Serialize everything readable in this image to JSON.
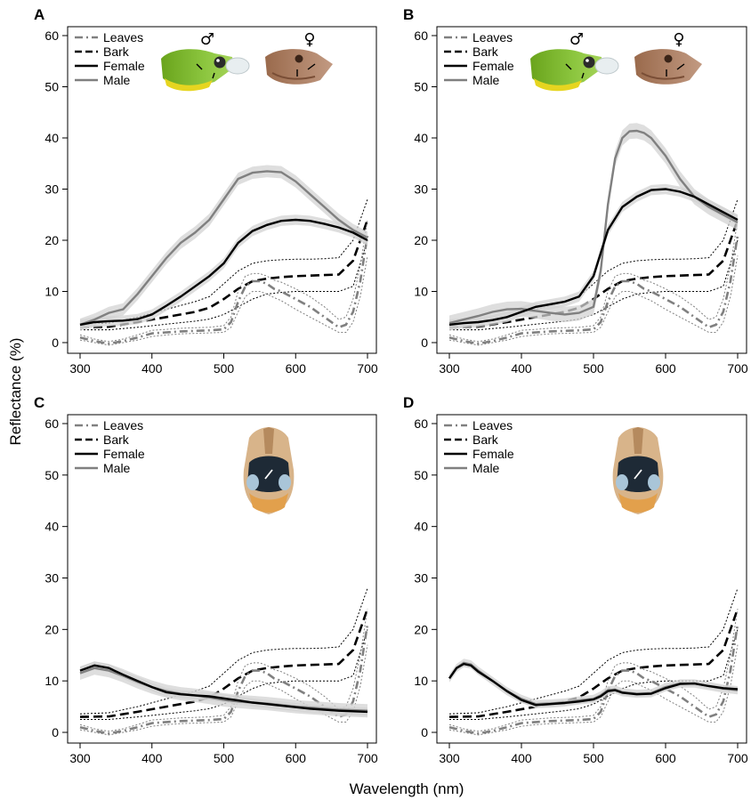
{
  "figure": {
    "ylabel": "Reflectance (%)",
    "xlabel": "Wavelength (nm)"
  },
  "chart_data": [
    {
      "panel": "A",
      "type": "line",
      "xlim": [
        300,
        700
      ],
      "ylim": [
        0,
        60
      ],
      "x_ticks": [
        300,
        400,
        500,
        600,
        700
      ],
      "y_ticks": [
        0,
        10,
        20,
        30,
        40,
        50,
        60
      ],
      "legend_position": "top-left",
      "legend": [
        "Leaves",
        "Bark",
        "Female",
        "Male"
      ],
      "image_annotations": [
        "♂",
        "♀"
      ],
      "series": [
        {
          "name": "Male",
          "style": "solid",
          "color": "#808080",
          "x": [
            300,
            320,
            340,
            360,
            380,
            400,
            420,
            440,
            460,
            480,
            500,
            520,
            540,
            560,
            580,
            600,
            620,
            640,
            660,
            680,
            700
          ],
          "y": [
            3.5,
            4.5,
            5.8,
            6.5,
            9.5,
            13,
            16.5,
            19.5,
            21.5,
            24,
            28,
            32,
            33.2,
            33.5,
            33.3,
            31.5,
            29,
            26.5,
            24,
            22,
            20.5
          ],
          "band": 1.2
        },
        {
          "name": "Female",
          "style": "solid",
          "color": "#000000",
          "x": [
            300,
            320,
            340,
            360,
            380,
            400,
            420,
            440,
            460,
            480,
            500,
            520,
            540,
            560,
            580,
            600,
            620,
            640,
            660,
            680,
            700
          ],
          "y": [
            3.5,
            4,
            4.2,
            4.3,
            4.6,
            5.5,
            7.2,
            9,
            11,
            13,
            15.5,
            19.5,
            21.8,
            23,
            23.8,
            24,
            23.8,
            23.2,
            22.5,
            21.5,
            20
          ],
          "band": 1.0
        }
      ]
    },
    {
      "panel": "B",
      "type": "line",
      "xlim": [
        300,
        700
      ],
      "ylim": [
        0,
        60
      ],
      "x_ticks": [
        300,
        400,
        500,
        600,
        700
      ],
      "y_ticks": [
        0,
        10,
        20,
        30,
        40,
        50,
        60
      ],
      "legend_position": "top-left",
      "legend": [
        "Leaves",
        "Bark",
        "Female",
        "Male"
      ],
      "image_annotations": [
        "♂",
        "♀"
      ],
      "series": [
        {
          "name": "Male",
          "style": "solid",
          "color": "#808080",
          "x": [
            300,
            320,
            340,
            360,
            380,
            400,
            420,
            440,
            460,
            480,
            500,
            510,
            520,
            530,
            540,
            550,
            560,
            570,
            580,
            600,
            620,
            640,
            660,
            680,
            700
          ],
          "y": [
            3.8,
            4.5,
            5.2,
            6,
            6.5,
            6.6,
            6.2,
            5.8,
            5.5,
            5.8,
            7,
            14,
            27,
            36,
            40,
            41.3,
            41.4,
            41,
            40,
            36.5,
            32,
            28.5,
            26.5,
            25,
            23.5
          ],
          "band": 1.5
        },
        {
          "name": "Female",
          "style": "solid",
          "color": "#000000",
          "x": [
            300,
            320,
            340,
            360,
            380,
            400,
            420,
            440,
            460,
            480,
            500,
            520,
            540,
            560,
            580,
            600,
            620,
            640,
            660,
            680,
            700
          ],
          "y": [
            3.5,
            3.8,
            4,
            4.4,
            5,
            6,
            7,
            7.5,
            8,
            9,
            13,
            22,
            26.5,
            28.5,
            29.8,
            30,
            29.5,
            28.5,
            27,
            25.5,
            24
          ],
          "band": 1.0
        }
      ]
    },
    {
      "panel": "C",
      "type": "line",
      "xlim": [
        300,
        700
      ],
      "ylim": [
        0,
        60
      ],
      "x_ticks": [
        300,
        400,
        500,
        600,
        700
      ],
      "y_ticks": [
        0,
        10,
        20,
        30,
        40,
        50,
        60
      ],
      "legend_position": "top-left",
      "legend": [
        "Leaves",
        "Bark",
        "Female",
        "Male"
      ],
      "image_annotations": [],
      "series": [
        {
          "name": "Male",
          "style": "solid",
          "color": "#808080",
          "x": [
            300,
            320,
            340,
            360,
            380,
            400,
            420,
            440,
            460,
            480,
            500,
            520,
            540,
            560,
            580,
            600,
            620,
            640,
            660,
            680,
            700
          ],
          "y": [
            11.5,
            12.5,
            12,
            11,
            9.8,
            8.8,
            8,
            7.5,
            7.2,
            6.8,
            6.3,
            6,
            5.8,
            5.6,
            5.3,
            5,
            4.8,
            4.6,
            4.4,
            4.3,
            4.2
          ],
          "band": 1.3
        },
        {
          "name": "Female",
          "style": "solid",
          "color": "#000000",
          "x": [
            300,
            320,
            340,
            360,
            380,
            400,
            420,
            440,
            460,
            480,
            500,
            520,
            540,
            560,
            580,
            600,
            620,
            640,
            660,
            680,
            700
          ],
          "y": [
            12,
            13,
            12.5,
            11.2,
            10,
            8.8,
            7.8,
            7.4,
            7.2,
            7,
            6.6,
            6.2,
            5.8,
            5.5,
            5.2,
            4.9,
            4.6,
            4.4,
            4.2,
            4.1,
            4
          ],
          "band": 0.8
        }
      ]
    },
    {
      "panel": "D",
      "type": "line",
      "xlim": [
        300,
        700
      ],
      "ylim": [
        0,
        60
      ],
      "x_ticks": [
        300,
        400,
        500,
        600,
        700
      ],
      "y_ticks": [
        0,
        10,
        20,
        30,
        40,
        50,
        60
      ],
      "legend_position": "top-left",
      "legend": [
        "Leaves",
        "Bark",
        "Female",
        "Male"
      ],
      "image_annotations": [],
      "series": [
        {
          "name": "Male",
          "style": "solid",
          "color": "#808080",
          "x": [
            300,
            310,
            320,
            330,
            340,
            360,
            380,
            400,
            420,
            440,
            460,
            480,
            500,
            510,
            520,
            530,
            540,
            560,
            580,
            600,
            620,
            640,
            660,
            680,
            700
          ],
          "y": [
            10.5,
            12.5,
            13.5,
            13.2,
            12,
            10,
            8,
            6.5,
            5.5,
            5.6,
            5.8,
            6.2,
            6.5,
            7.2,
            8.2,
            8.3,
            7.8,
            7.5,
            7.6,
            8.8,
            9.5,
            9.5,
            9,
            8.5,
            8.2
          ],
          "band": 0.8
        },
        {
          "name": "Female",
          "style": "solid",
          "color": "#000000",
          "x": [
            300,
            310,
            320,
            330,
            340,
            360,
            380,
            400,
            420,
            440,
            460,
            480,
            500,
            510,
            520,
            530,
            540,
            560,
            580,
            600,
            620,
            640,
            660,
            680,
            700
          ],
          "y": [
            10.5,
            12.5,
            13.3,
            13,
            11.8,
            10,
            8,
            6.3,
            5.3,
            5.5,
            5.7,
            6,
            6.4,
            7,
            8,
            8.2,
            7.7,
            7.4,
            7.5,
            8.6,
            9.4,
            9.5,
            9,
            8.6,
            8.4
          ],
          "band": 0.5
        }
      ]
    }
  ],
  "background_series": [
    {
      "name": "Leaves",
      "style": "dash-dot",
      "color": "#808080",
      "x": [
        300,
        320,
        340,
        360,
        380,
        400,
        420,
        440,
        460,
        480,
        500,
        510,
        520,
        530,
        540,
        550,
        560,
        570,
        580,
        600,
        620,
        640,
        660,
        670,
        680,
        690,
        700
      ],
      "y": [
        1,
        0.3,
        -0.2,
        0.3,
        1,
        1.8,
        2,
        2.2,
        2.3,
        2.4,
        2.6,
        4,
        8,
        11,
        12,
        12,
        11.5,
        10.5,
        10,
        8.5,
        7,
        5,
        3,
        3.5,
        6,
        12,
        21
      ],
      "lower": [
        0.5,
        0,
        -0.5,
        0,
        0.5,
        1.2,
        1.5,
        1.7,
        1.8,
        1.9,
        2,
        3,
        6,
        9,
        10,
        10,
        9.5,
        8.8,
        8.2,
        6.5,
        5,
        3.5,
        2,
        2,
        4,
        9,
        17
      ],
      "upper": [
        1.5,
        0.7,
        0.2,
        0.7,
        1.5,
        2.4,
        2.6,
        2.8,
        2.9,
        3,
        3.3,
        5,
        10,
        13,
        13.5,
        13.5,
        13,
        12.2,
        11.8,
        10.5,
        9,
        7,
        4.5,
        5,
        8.5,
        15,
        24
      ]
    },
    {
      "name": "Bark",
      "style": "dashed",
      "color": "#000000",
      "x": [
        300,
        340,
        380,
        420,
        460,
        480,
        500,
        520,
        540,
        560,
        580,
        600,
        620,
        640,
        660,
        680,
        700
      ],
      "y": [
        3,
        3.1,
        4,
        5,
        6,
        6.8,
        8.5,
        10.5,
        12,
        12.5,
        12.8,
        13,
        13.1,
        13.2,
        13.3,
        16,
        24
      ],
      "lower": [
        2.5,
        2.5,
        3,
        3.6,
        4.2,
        4.6,
        5.5,
        7,
        8.5,
        9.5,
        9.8,
        10,
        10,
        10,
        10,
        11,
        20
      ],
      "upper": [
        3.6,
        3.8,
        5,
        6.5,
        8,
        9,
        11.5,
        14,
        15.5,
        16,
        16.2,
        16.3,
        16.3,
        16.4,
        16.6,
        20,
        28
      ]
    }
  ]
}
